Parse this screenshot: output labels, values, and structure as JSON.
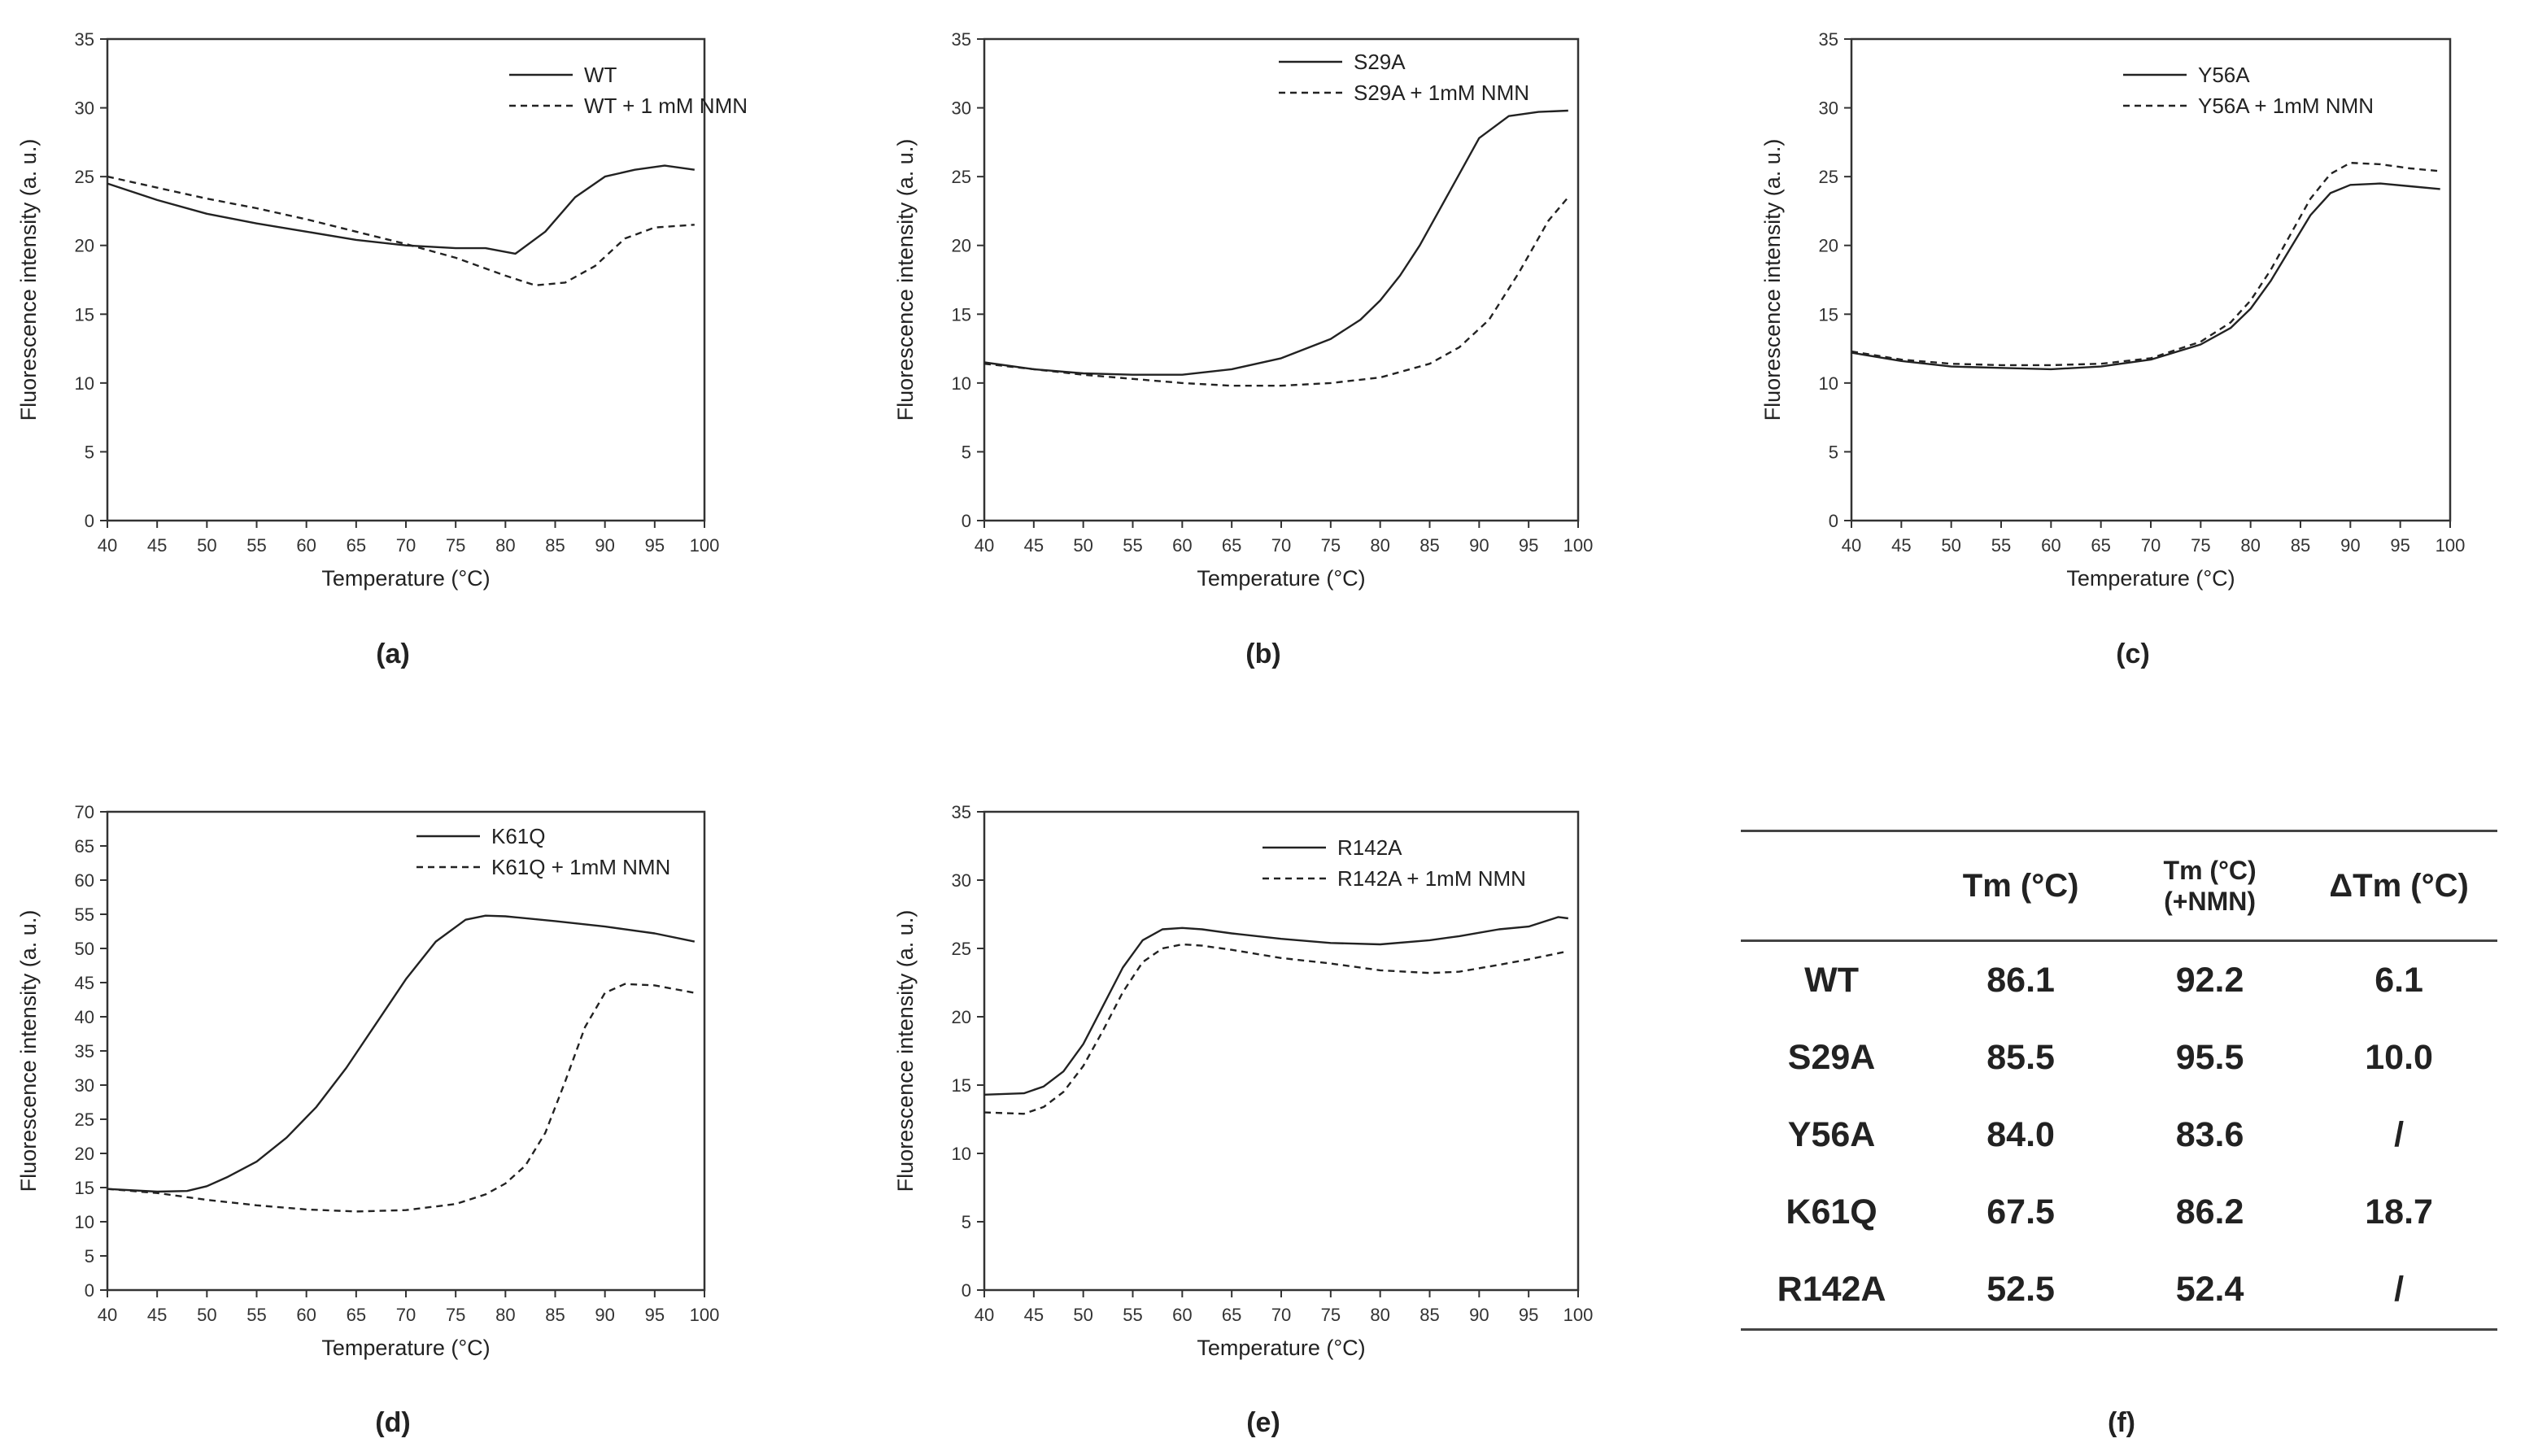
{
  "panels": [
    {
      "id": "a",
      "label": "(a)"
    },
    {
      "id": "b",
      "label": "(b)"
    },
    {
      "id": "c",
      "label": "(c)"
    },
    {
      "id": "d",
      "label": "(d)"
    },
    {
      "id": "e",
      "label": "(e)"
    },
    {
      "id": "f",
      "label": "(f)"
    }
  ],
  "chart_data": [
    {
      "panel": "(a)",
      "type": "line",
      "xlabel": "Temperature (°C)",
      "ylabel": "Fluorescence intensity (a. u.)",
      "xlim": [
        40,
        100
      ],
      "ylim": [
        0,
        35
      ],
      "xticks": [
        40,
        45,
        50,
        55,
        60,
        65,
        70,
        75,
        80,
        85,
        90,
        95,
        100
      ],
      "yticks": [
        0,
        5,
        10,
        15,
        20,
        25,
        30,
        35
      ],
      "series": [
        {
          "name": "WT",
          "style": "solid",
          "x": [
            40,
            45,
            50,
            55,
            60,
            65,
            70,
            75,
            78,
            81,
            84,
            87,
            90,
            93,
            96,
            99
          ],
          "y": [
            24.5,
            23.3,
            22.3,
            21.6,
            21.0,
            20.4,
            20.0,
            19.8,
            19.8,
            19.4,
            21.0,
            23.5,
            25.0,
            25.5,
            25.8,
            25.5
          ]
        },
        {
          "name": "WT + 1 mM NMN",
          "style": "dashed",
          "x": [
            40,
            45,
            50,
            55,
            60,
            65,
            70,
            75,
            80,
            83,
            86,
            89,
            92,
            95,
            99
          ],
          "y": [
            25.0,
            24.2,
            23.4,
            22.7,
            21.9,
            21.0,
            20.1,
            19.1,
            17.8,
            17.1,
            17.3,
            18.5,
            20.5,
            21.3,
            21.5
          ]
        }
      ]
    },
    {
      "panel": "(b)",
      "type": "line",
      "xlabel": "Temperature (°C)",
      "ylabel": "Fluorescence intensity (a. u.)",
      "xlim": [
        40,
        100
      ],
      "ylim": [
        0,
        35
      ],
      "xticks": [
        40,
        45,
        50,
        55,
        60,
        65,
        70,
        75,
        80,
        85,
        90,
        95,
        100
      ],
      "yticks": [
        0,
        5,
        10,
        15,
        20,
        25,
        30,
        35
      ],
      "series": [
        {
          "name": "S29A",
          "style": "solid",
          "x": [
            40,
            45,
            50,
            55,
            60,
            65,
            70,
            75,
            78,
            80,
            82,
            84,
            86,
            88,
            90,
            93,
            96,
            99
          ],
          "y": [
            11.5,
            11.0,
            10.7,
            10.6,
            10.6,
            11.0,
            11.8,
            13.2,
            14.6,
            16.0,
            17.8,
            20.0,
            22.6,
            25.2,
            27.8,
            29.4,
            29.7,
            29.8
          ]
        },
        {
          "name": "S29A + 1mM NMN",
          "style": "dashed",
          "x": [
            40,
            45,
            50,
            55,
            60,
            65,
            70,
            75,
            80,
            85,
            88,
            91,
            94,
            97,
            99
          ],
          "y": [
            11.4,
            11.0,
            10.6,
            10.3,
            10.0,
            9.8,
            9.8,
            10.0,
            10.4,
            11.4,
            12.6,
            14.6,
            18.0,
            21.8,
            23.5
          ]
        }
      ]
    },
    {
      "panel": "(c)",
      "type": "line",
      "xlabel": "Temperature (°C)",
      "ylabel": "Fluorescence intensity (a. u.)",
      "xlim": [
        40,
        100
      ],
      "ylim": [
        0,
        35
      ],
      "xticks": [
        40,
        45,
        50,
        55,
        60,
        65,
        70,
        75,
        80,
        85,
        90,
        95,
        100
      ],
      "yticks": [
        0,
        5,
        10,
        15,
        20,
        25,
        30,
        35
      ],
      "series": [
        {
          "name": "Y56A",
          "style": "solid",
          "x": [
            40,
            45,
            50,
            55,
            60,
            65,
            70,
            75,
            78,
            80,
            82,
            84,
            86,
            88,
            90,
            93,
            96,
            99
          ],
          "y": [
            12.2,
            11.6,
            11.2,
            11.1,
            11.0,
            11.2,
            11.7,
            12.8,
            14.0,
            15.4,
            17.4,
            19.8,
            22.2,
            23.8,
            24.4,
            24.5,
            24.3,
            24.1
          ]
        },
        {
          "name": "Y56A  + 1mM NMN",
          "style": "dashed",
          "x": [
            40,
            45,
            50,
            55,
            60,
            65,
            70,
            75,
            78,
            80,
            82,
            84,
            86,
            88,
            90,
            93,
            96,
            99
          ],
          "y": [
            12.3,
            11.7,
            11.4,
            11.3,
            11.3,
            11.4,
            11.8,
            13.0,
            14.4,
            16.0,
            18.2,
            20.8,
            23.4,
            25.2,
            26.0,
            25.9,
            25.6,
            25.4
          ]
        }
      ]
    },
    {
      "panel": "(d)",
      "type": "line",
      "xlabel": "Temperature (°C)",
      "ylabel": "Fluorescence intensity (a. u.)",
      "xlim": [
        40,
        100
      ],
      "ylim": [
        0,
        70
      ],
      "xticks": [
        40,
        45,
        50,
        55,
        60,
        65,
        70,
        75,
        80,
        85,
        90,
        95,
        100
      ],
      "yticks": [
        0,
        5,
        10,
        15,
        20,
        25,
        30,
        35,
        40,
        45,
        50,
        55,
        60,
        65,
        70
      ],
      "series": [
        {
          "name": "K61Q",
          "style": "solid",
          "x": [
            40,
            45,
            48,
            50,
            52,
            55,
            58,
            61,
            64,
            67,
            70,
            73,
            76,
            78,
            80,
            85,
            90,
            95,
            99
          ],
          "y": [
            14.8,
            14.4,
            14.5,
            15.2,
            16.5,
            18.8,
            22.3,
            26.8,
            32.5,
            39.0,
            45.5,
            51.0,
            54.2,
            54.8,
            54.7,
            54.0,
            53.2,
            52.2,
            51.0
          ]
        },
        {
          "name": "K61Q + 1mM NMN",
          "style": "dashed",
          "x": [
            40,
            45,
            50,
            55,
            60,
            65,
            70,
            75,
            78,
            80,
            82,
            84,
            86,
            88,
            90,
            92,
            95,
            99
          ],
          "y": [
            14.8,
            14.2,
            13.2,
            12.4,
            11.8,
            11.5,
            11.7,
            12.6,
            14.0,
            15.6,
            18.2,
            23.0,
            30.5,
            38.5,
            43.5,
            44.8,
            44.6,
            43.5
          ]
        }
      ]
    },
    {
      "panel": "(e)",
      "type": "line",
      "xlabel": "Temperature (°C)",
      "ylabel": "Fluorescence intensity (a. u.)",
      "xlim": [
        40,
        100
      ],
      "ylim": [
        0,
        35
      ],
      "xticks": [
        40,
        45,
        50,
        55,
        60,
        65,
        70,
        75,
        80,
        85,
        90,
        95,
        100
      ],
      "yticks": [
        0,
        5,
        10,
        15,
        20,
        25,
        30,
        35
      ],
      "series": [
        {
          "name": "R142A",
          "style": "solid",
          "x": [
            40,
            44,
            46,
            48,
            50,
            52,
            54,
            56,
            58,
            60,
            62,
            65,
            70,
            75,
            80,
            85,
            88,
            92,
            95,
            98,
            99
          ],
          "y": [
            14.3,
            14.4,
            14.9,
            16.0,
            18.0,
            20.8,
            23.6,
            25.6,
            26.4,
            26.5,
            26.4,
            26.1,
            25.7,
            25.4,
            25.3,
            25.6,
            25.9,
            26.4,
            26.6,
            27.3,
            27.2
          ]
        },
        {
          "name": "R142A + 1mM NMN",
          "style": "dashed",
          "x": [
            40,
            44,
            46,
            48,
            50,
            52,
            54,
            56,
            58,
            60,
            62,
            65,
            70,
            75,
            80,
            85,
            88,
            92,
            95,
            99
          ],
          "y": [
            13.0,
            12.9,
            13.4,
            14.5,
            16.4,
            19.0,
            21.8,
            24.0,
            25.0,
            25.3,
            25.2,
            24.9,
            24.3,
            23.9,
            23.4,
            23.2,
            23.3,
            23.8,
            24.2,
            24.8
          ]
        }
      ]
    },
    {
      "panel": "(f)",
      "type": "table",
      "columns": [
        "",
        "Tm (°C)",
        "Tm (°C)\n(+NMN)",
        "ΔTm (°C)"
      ],
      "rows": [
        [
          "WT",
          "86.1",
          "92.2",
          "6.1"
        ],
        [
          "S29A",
          "85.5",
          "95.5",
          "10.0"
        ],
        [
          "Y56A",
          "84.0",
          "83.6",
          "/"
        ],
        [
          "K61Q",
          "67.5",
          "86.2",
          "18.7"
        ],
        [
          "R142A",
          "52.5",
          "52.4",
          "/"
        ]
      ]
    }
  ]
}
